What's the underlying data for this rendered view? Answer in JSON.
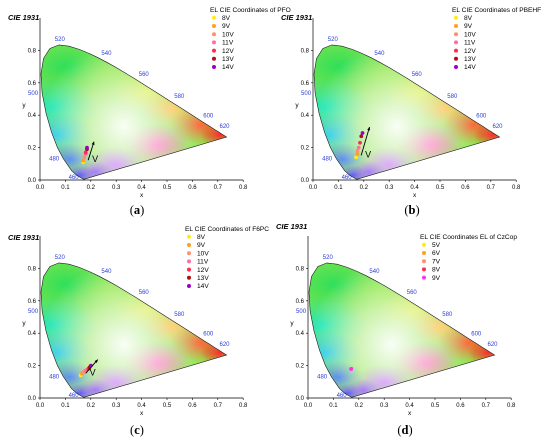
{
  "chart_data": [
    {
      "type": "scatter",
      "panel_label": "a",
      "title": "CIE 1931",
      "xlabel": "x",
      "ylabel": "y",
      "xlim": [
        0.0,
        0.8
      ],
      "ylim": [
        0.0,
        0.9
      ],
      "x_ticks": [
        "0.0",
        "0.1",
        "0.2",
        "0.3",
        "0.4",
        "0.5",
        "0.6",
        "0.7",
        "0.8"
      ],
      "y_ticks": [
        "0.0",
        "0.2",
        "0.4",
        "0.6",
        "0.8"
      ],
      "legend_title": "EL CIE Coordinates of PFO",
      "legend_position": "top-right",
      "arrow_label": "V",
      "series": [
        {
          "name": "8V",
          "color": "#ffee10",
          "x": [
            0.17
          ],
          "y": [
            0.11
          ]
        },
        {
          "name": "9V",
          "color": "#ffa020",
          "x": [
            0.17
          ],
          "y": [
            0.12
          ]
        },
        {
          "name": "10V",
          "color": "#ff9070",
          "x": [
            0.175
          ],
          "y": [
            0.14
          ]
        },
        {
          "name": "11V",
          "color": "#ff70a0",
          "x": [
            0.18
          ],
          "y": [
            0.16
          ]
        },
        {
          "name": "12V",
          "color": "#ff2a50",
          "x": [
            0.18
          ],
          "y": [
            0.17
          ]
        },
        {
          "name": "13V",
          "color": "#b01010",
          "x": [
            0.185
          ],
          "y": [
            0.19
          ]
        },
        {
          "name": "14V",
          "color": "#9900cc",
          "x": [
            0.185
          ],
          "y": [
            0.2
          ]
        }
      ]
    },
    {
      "type": "scatter",
      "panel_label": "b",
      "title": "CIE 1931",
      "xlabel": "x",
      "ylabel": "y",
      "xlim": [
        0.0,
        0.8
      ],
      "ylim": [
        0.0,
        0.9
      ],
      "x_ticks": [
        "0.0",
        "0.1",
        "0.2",
        "0.3",
        "0.4",
        "0.5",
        "0.6",
        "0.7",
        "0.8"
      ],
      "y_ticks": [
        "0.0",
        "0.2",
        "0.4",
        "0.6",
        "0.8"
      ],
      "legend_title": "EL CIE Coordinates of PBEHF",
      "legend_position": "top-right",
      "arrow_label": "V",
      "series": [
        {
          "name": "8V",
          "color": "#ffee10",
          "x": [
            0.17
          ],
          "y": [
            0.14
          ]
        },
        {
          "name": "9V",
          "color": "#ffa020",
          "x": [
            0.175
          ],
          "y": [
            0.16
          ]
        },
        {
          "name": "10V",
          "color": "#ff9070",
          "x": [
            0.175
          ],
          "y": [
            0.18
          ]
        },
        {
          "name": "11V",
          "color": "#ff70a0",
          "x": [
            0.18
          ],
          "y": [
            0.2
          ]
        },
        {
          "name": "12V",
          "color": "#ff2a50",
          "x": [
            0.185
          ],
          "y": [
            0.23
          ]
        },
        {
          "name": "13V",
          "color": "#b01010",
          "x": [
            0.19
          ],
          "y": [
            0.27
          ]
        },
        {
          "name": "14V",
          "color": "#9900cc",
          "x": [
            0.195
          ],
          "y": [
            0.29
          ]
        }
      ]
    },
    {
      "type": "scatter",
      "panel_label": "c",
      "title": "CIE 1931",
      "xlabel": "x",
      "ylabel": "y",
      "xlim": [
        0.0,
        0.8
      ],
      "ylim": [
        0.0,
        0.9
      ],
      "x_ticks": [
        "0.0",
        "0.1",
        "0.2",
        "0.3",
        "0.4",
        "0.5",
        "0.6",
        "0.7",
        "0.8"
      ],
      "y_ticks": [
        "0.0",
        "0.2",
        "0.4",
        "0.6",
        "0.8"
      ],
      "legend_title": "EL CIE Coordinates of F6PC",
      "legend_position": "top-right",
      "arrow_label": "V",
      "series": [
        {
          "name": "8V",
          "color": "#ffee10",
          "x": [
            0.16
          ],
          "y": [
            0.14
          ]
        },
        {
          "name": "9V",
          "color": "#ffa020",
          "x": [
            0.165
          ],
          "y": [
            0.15
          ]
        },
        {
          "name": "10V",
          "color": "#ff9070",
          "x": [
            0.17
          ],
          "y": [
            0.16
          ]
        },
        {
          "name": "11V",
          "color": "#ff70a0",
          "x": [
            0.18
          ],
          "y": [
            0.17
          ]
        },
        {
          "name": "12V",
          "color": "#ff2a50",
          "x": [
            0.19
          ],
          "y": [
            0.18
          ]
        },
        {
          "name": "13V",
          "color": "#b01010",
          "x": [
            0.195
          ],
          "y": [
            0.19
          ]
        },
        {
          "name": "14V",
          "color": "#9900cc",
          "x": [
            0.2
          ],
          "y": [
            0.2
          ]
        }
      ]
    },
    {
      "type": "scatter",
      "panel_label": "d",
      "title": "CIE 1931",
      "xlabel": "x",
      "ylabel": "y",
      "xlim": [
        0.0,
        0.8
      ],
      "ylim": [
        0.0,
        0.9
      ],
      "x_ticks": [
        "0.0",
        "0.1",
        "0.2",
        "0.3",
        "0.4",
        "0.5",
        "0.6",
        "0.7",
        "0.8"
      ],
      "y_ticks": [
        "0.0",
        "0.2",
        "0.4",
        "0.6",
        "0.8"
      ],
      "legend_title": "EL CIE Coordinates EL of CzCop",
      "legend_position": "top-right",
      "arrow_label": "",
      "series": [
        {
          "name": "5V",
          "color": "#ffee10",
          "x": [
            0.17
          ],
          "y": [
            0.18
          ]
        },
        {
          "name": "6V",
          "color": "#ffa020",
          "x": [
            0.17
          ],
          "y": [
            0.18
          ]
        },
        {
          "name": "7V",
          "color": "#ff9070",
          "x": [
            0.17
          ],
          "y": [
            0.18
          ]
        },
        {
          "name": "8V",
          "color": "#ff2a50",
          "x": [
            0.17
          ],
          "y": [
            0.18
          ]
        },
        {
          "name": "9V",
          "color": "#ff30ff",
          "x": [
            0.17
          ],
          "y": [
            0.18
          ]
        }
      ]
    }
  ],
  "locus_wavelength_labels": [
    "460",
    "480",
    "500",
    "520",
    "540",
    "560",
    "580",
    "600",
    "620"
  ]
}
